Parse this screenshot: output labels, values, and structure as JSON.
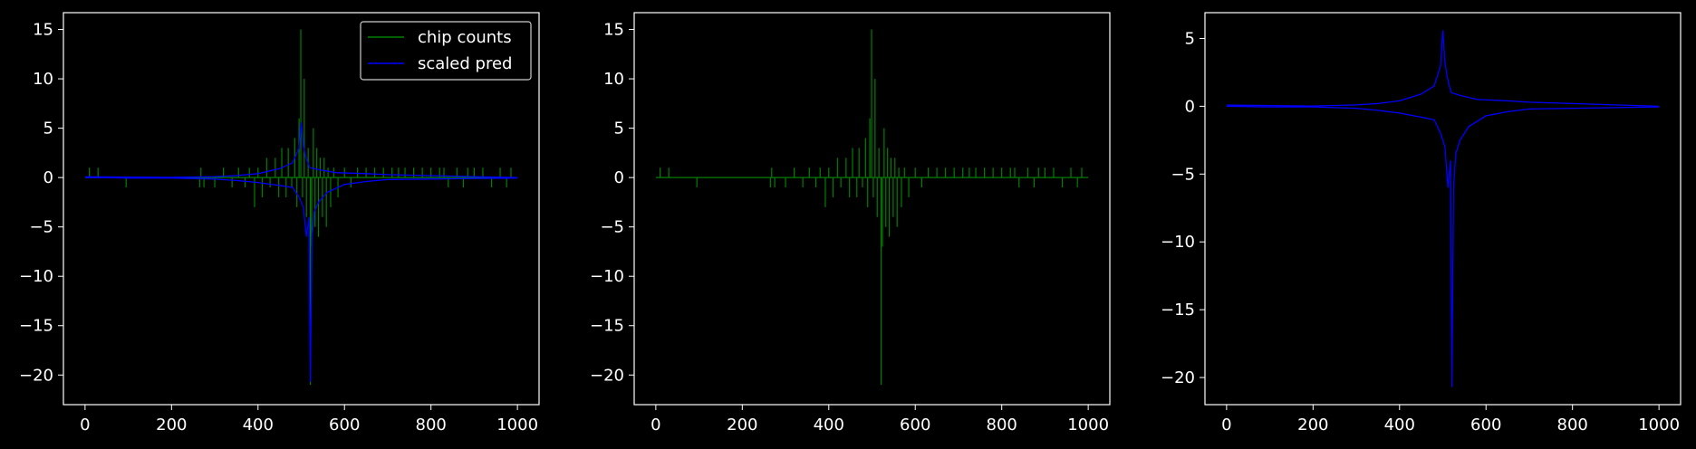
{
  "colors": {
    "background": "#000000",
    "axes": "#ffffff",
    "green_series": "#008000",
    "blue_series": "#0000ff"
  },
  "legend": {
    "items": [
      "chip counts",
      "scaled pred"
    ]
  },
  "chart_data": [
    {
      "type": "line",
      "title": "",
      "xlabel": "",
      "ylabel": "",
      "xlim": [
        -50,
        1050
      ],
      "ylim": [
        -23,
        16.7
      ],
      "xticks": [
        0,
        200,
        400,
        600,
        800,
        1000
      ],
      "yticks": [
        15,
        10,
        5,
        0,
        -5,
        -10,
        -15,
        -20
      ],
      "legend": "top-right",
      "series": [
        {
          "name": "chip counts",
          "color": "#008000",
          "kind": "counts",
          "spikes": [
            [
              10,
              1
            ],
            [
              30,
              1
            ],
            [
              95,
              -1
            ],
            [
              265,
              -1
            ],
            [
              268,
              1
            ],
            [
              275,
              -1
            ],
            [
              300,
              -1
            ],
            [
              320,
              1
            ],
            [
              340,
              -1
            ],
            [
              355,
              1
            ],
            [
              370,
              -1
            ],
            [
              380,
              1
            ],
            [
              392,
              -3
            ],
            [
              400,
              1
            ],
            [
              410,
              -2
            ],
            [
              420,
              2
            ],
            [
              428,
              -1
            ],
            [
              440,
              2
            ],
            [
              448,
              -2
            ],
            [
              455,
              3
            ],
            [
              465,
              -2
            ],
            [
              470,
              3
            ],
            [
              478,
              -1
            ],
            [
              485,
              4
            ],
            [
              490,
              -3
            ],
            [
              495,
              6
            ],
            [
              499,
              15
            ],
            [
              503,
              -2
            ],
            [
              507,
              10
            ],
            [
              512,
              -4
            ],
            [
              516,
              3
            ],
            [
              521,
              -21
            ],
            [
              524,
              -7
            ],
            [
              528,
              5
            ],
            [
              532,
              -5
            ],
            [
              536,
              3
            ],
            [
              540,
              -6
            ],
            [
              544,
              2
            ],
            [
              549,
              -4
            ],
            [
              553,
              2
            ],
            [
              558,
              -5
            ],
            [
              562,
              1
            ],
            [
              568,
              -3
            ],
            [
              575,
              1
            ],
            [
              585,
              -2
            ],
            [
              600,
              1
            ],
            [
              615,
              -1
            ],
            [
              630,
              1
            ],
            [
              650,
              1
            ],
            [
              670,
              1
            ],
            [
              690,
              1
            ],
            [
              710,
              1
            ],
            [
              725,
              1
            ],
            [
              740,
              1
            ],
            [
              760,
              1
            ],
            [
              780,
              1
            ],
            [
              800,
              1
            ],
            [
              820,
              1
            ],
            [
              830,
              1
            ],
            [
              840,
              -1
            ],
            [
              860,
              1
            ],
            [
              875,
              -1
            ],
            [
              885,
              1
            ],
            [
              900,
              1
            ],
            [
              920,
              1
            ],
            [
              940,
              -1
            ],
            [
              960,
              1
            ],
            [
              975,
              -1
            ],
            [
              985,
              1
            ]
          ]
        },
        {
          "name": "scaled pred",
          "color": "#0000ff",
          "kind": "prediction",
          "upper": [
            [
              0,
              0.08
            ],
            [
              100,
              0.05
            ],
            [
              200,
              0.02
            ],
            [
              300,
              0.1
            ],
            [
              350,
              0.2
            ],
            [
              400,
              0.4
            ],
            [
              450,
              0.9
            ],
            [
              480,
              1.5
            ],
            [
              495,
              3
            ],
            [
              500,
              5.6
            ],
            [
              505,
              3.2
            ],
            [
              510,
              2.2
            ],
            [
              515,
              1.5
            ],
            [
              520,
              1.0
            ],
            [
              540,
              0.8
            ],
            [
              580,
              0.5
            ],
            [
              650,
              0.4
            ],
            [
              700,
              0.3
            ],
            [
              800,
              0.2
            ],
            [
              900,
              0.1
            ],
            [
              1000,
              0.0
            ]
          ],
          "lower": [
            [
              0,
              0.0
            ],
            [
              100,
              -0.05
            ],
            [
              200,
              -0.05
            ],
            [
              300,
              -0.15
            ],
            [
              350,
              -0.3
            ],
            [
              400,
              -0.5
            ],
            [
              450,
              -0.8
            ],
            [
              480,
              -1.0
            ],
            [
              495,
              -2
            ],
            [
              505,
              -3
            ],
            [
              512,
              -6
            ],
            [
              518,
              -4
            ],
            [
              521,
              -20.7
            ],
            [
              525,
              -6
            ],
            [
              530,
              -3.5
            ],
            [
              540,
              -2.5
            ],
            [
              560,
              -1.5
            ],
            [
              600,
              -0.7
            ],
            [
              650,
              -0.4
            ],
            [
              700,
              -0.2
            ],
            [
              800,
              -0.15
            ],
            [
              900,
              -0.1
            ],
            [
              1000,
              -0.05
            ]
          ]
        }
      ]
    },
    {
      "type": "line",
      "title": "",
      "xlabel": "",
      "ylabel": "",
      "xlim": [
        -50,
        1050
      ],
      "ylim": [
        -23,
        16.7
      ],
      "xticks": [
        0,
        200,
        400,
        600,
        800,
        1000
      ],
      "yticks": [
        15,
        10,
        5,
        0,
        -5,
        -10,
        -15,
        -20
      ],
      "series": [
        {
          "name": "chip counts",
          "color": "#008000",
          "kind": "counts",
          "spikes": [
            [
              10,
              1
            ],
            [
              30,
              1
            ],
            [
              95,
              -1
            ],
            [
              265,
              -1
            ],
            [
              268,
              1
            ],
            [
              275,
              -1
            ],
            [
              300,
              -1
            ],
            [
              320,
              1
            ],
            [
              340,
              -1
            ],
            [
              355,
              1
            ],
            [
              370,
              -1
            ],
            [
              380,
              1
            ],
            [
              392,
              -3
            ],
            [
              400,
              1
            ],
            [
              410,
              -2
            ],
            [
              420,
              2
            ],
            [
              428,
              -1
            ],
            [
              440,
              2
            ],
            [
              448,
              -2
            ],
            [
              455,
              3
            ],
            [
              465,
              -2
            ],
            [
              470,
              3
            ],
            [
              478,
              -1
            ],
            [
              485,
              4
            ],
            [
              490,
              -3
            ],
            [
              495,
              6
            ],
            [
              499,
              15
            ],
            [
              503,
              -2
            ],
            [
              507,
              10
            ],
            [
              512,
              -4
            ],
            [
              516,
              3
            ],
            [
              521,
              -21
            ],
            [
              524,
              -7
            ],
            [
              528,
              5
            ],
            [
              532,
              -5
            ],
            [
              536,
              3
            ],
            [
              540,
              -6
            ],
            [
              544,
              2
            ],
            [
              549,
              -4
            ],
            [
              553,
              2
            ],
            [
              558,
              -5
            ],
            [
              562,
              1
            ],
            [
              568,
              -3
            ],
            [
              575,
              1
            ],
            [
              585,
              -2
            ],
            [
              600,
              1
            ],
            [
              615,
              -1
            ],
            [
              630,
              1
            ],
            [
              650,
              1
            ],
            [
              670,
              1
            ],
            [
              690,
              1
            ],
            [
              710,
              1
            ],
            [
              725,
              1
            ],
            [
              740,
              1
            ],
            [
              760,
              1
            ],
            [
              780,
              1
            ],
            [
              800,
              1
            ],
            [
              820,
              1
            ],
            [
              830,
              1
            ],
            [
              840,
              -1
            ],
            [
              860,
              1
            ],
            [
              875,
              -1
            ],
            [
              885,
              1
            ],
            [
              900,
              1
            ],
            [
              920,
              1
            ],
            [
              940,
              -1
            ],
            [
              960,
              1
            ],
            [
              975,
              -1
            ],
            [
              985,
              1
            ]
          ]
        }
      ]
    },
    {
      "type": "line",
      "title": "",
      "xlabel": "",
      "ylabel": "",
      "xlim": [
        -50,
        1050
      ],
      "ylim": [
        -22,
        6.9
      ],
      "xticks": [
        0,
        200,
        400,
        600,
        800,
        1000
      ],
      "yticks": [
        5,
        0,
        -5,
        -10,
        -15,
        -20
      ],
      "series": [
        {
          "name": "scaled pred",
          "color": "#0000ff",
          "kind": "prediction",
          "upper": [
            [
              0,
              0.08
            ],
            [
              100,
              0.05
            ],
            [
              200,
              0.02
            ],
            [
              300,
              0.1
            ],
            [
              350,
              0.2
            ],
            [
              400,
              0.4
            ],
            [
              450,
              0.9
            ],
            [
              480,
              1.5
            ],
            [
              495,
              3
            ],
            [
              500,
              5.6
            ],
            [
              505,
              3.2
            ],
            [
              510,
              2.2
            ],
            [
              515,
              1.5
            ],
            [
              520,
              1.0
            ],
            [
              540,
              0.8
            ],
            [
              580,
              0.5
            ],
            [
              650,
              0.4
            ],
            [
              700,
              0.3
            ],
            [
              800,
              0.2
            ],
            [
              900,
              0.1
            ],
            [
              1000,
              0.0
            ]
          ],
          "lower": [
            [
              0,
              0.0
            ],
            [
              100,
              -0.05
            ],
            [
              200,
              -0.05
            ],
            [
              300,
              -0.15
            ],
            [
              350,
              -0.3
            ],
            [
              400,
              -0.5
            ],
            [
              450,
              -0.8
            ],
            [
              480,
              -1.0
            ],
            [
              495,
              -2
            ],
            [
              505,
              -3
            ],
            [
              512,
              -6
            ],
            [
              518,
              -4
            ],
            [
              521,
              -20.7
            ],
            [
              525,
              -6
            ],
            [
              530,
              -3.5
            ],
            [
              540,
              -2.5
            ],
            [
              560,
              -1.5
            ],
            [
              600,
              -0.7
            ],
            [
              650,
              -0.4
            ],
            [
              700,
              -0.2
            ],
            [
              800,
              -0.15
            ],
            [
              900,
              -0.1
            ],
            [
              1000,
              -0.05
            ]
          ]
        }
      ]
    }
  ]
}
